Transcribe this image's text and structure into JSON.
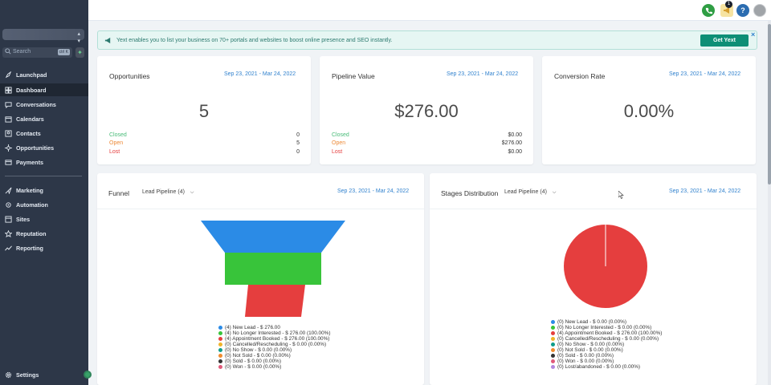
{
  "sidebar": {
    "search_placeholder": "Search",
    "search_shortcut": "ctrl K",
    "items": [
      {
        "label": "Launchpad",
        "icon": "rocket-icon"
      },
      {
        "label": "Dashboard",
        "icon": "dashboard-icon",
        "active": true
      },
      {
        "label": "Conversations",
        "icon": "chat-icon"
      },
      {
        "label": "Calendars",
        "icon": "calendar-icon"
      },
      {
        "label": "Contacts",
        "icon": "contacts-icon"
      },
      {
        "label": "Opportunities",
        "icon": "opportunities-icon"
      },
      {
        "label": "Payments",
        "icon": "payments-icon"
      },
      {
        "label": "Marketing",
        "icon": "marketing-icon"
      },
      {
        "label": "Automation",
        "icon": "automation-icon"
      },
      {
        "label": "Sites",
        "icon": "sites-icon"
      },
      {
        "label": "Reputation",
        "icon": "star-icon"
      },
      {
        "label": "Reporting",
        "icon": "reporting-icon"
      }
    ],
    "settings_label": "Settings"
  },
  "topbar": {
    "notification_count": "1",
    "help_label": "?"
  },
  "banner": {
    "text": "Yext enables you to list your business on 70+ portals and websites to boost online presence and SEO instantly.",
    "button_label": "Get Yext",
    "close_label": "×"
  },
  "cards": {
    "opportunities": {
      "title": "Opportunities",
      "date_range": "Sep 23, 2021 - Mar 24, 2022",
      "value": "5",
      "stats": [
        {
          "label": "Closed",
          "value": "0"
        },
        {
          "label": "Open",
          "value": "5"
        },
        {
          "label": "Lost",
          "value": "0"
        }
      ]
    },
    "pipeline_value": {
      "title": "Pipeline Value",
      "date_range": "Sep 23, 2021 - Mar 24, 2022",
      "value": "$276.00",
      "stats": [
        {
          "label": "Closed",
          "value": "$0.00"
        },
        {
          "label": "Open",
          "value": "$276.00"
        },
        {
          "label": "Lost",
          "value": "$0.00"
        }
      ]
    },
    "conversion_rate": {
      "title": "Conversion Rate",
      "date_range": "Sep 23, 2021 - Mar 24, 2022",
      "value": "0.00%"
    }
  },
  "funnel": {
    "title": "Funnel",
    "pipeline": "Lead Pipeline (4)",
    "date_range": "Sep 23, 2021 - Mar 24, 2022",
    "legend": [
      {
        "label": "(4) New Lead - $ 276.00",
        "color": "#2b8be6"
      },
      {
        "label": "(4) No Longer Interested - $ 276.00 (100.00%)",
        "color": "#38c43a"
      },
      {
        "label": "(4) Appointment Booked - $ 276.00 (100.00%)",
        "color": "#e53e3e"
      },
      {
        "label": "(0) Cancelled/Rescheduling - $ 0.00 (0.00%)",
        "color": "#f0b429"
      },
      {
        "label": "(0) No Show - $ 0.00 (0.00%)",
        "color": "#0f9d8a"
      },
      {
        "label": "(0) Not Sold - $ 0.00 (0.00%)",
        "color": "#f08c2e"
      },
      {
        "label": "(0) Sold - $ 0.00 (0.00%)",
        "color": "#333333"
      },
      {
        "label": "(0) Won - $ 0.00 (0.00%)",
        "color": "#e05a7a"
      }
    ]
  },
  "stages": {
    "title": "Stages Distribution",
    "pipeline": "Lead Pipeline (4)",
    "date_range": "Sep 23, 2021 - Mar 24, 2022",
    "legend": [
      {
        "label": "(0) New Lead - $ 0.00 (0.00%)",
        "color": "#2b8be6"
      },
      {
        "label": "(0) No Longer Interested - $ 0.00 (0.00%)",
        "color": "#38c43a"
      },
      {
        "label": "(4) Appointment Booked - $ 276.00 (100.00%)",
        "color": "#e53e3e"
      },
      {
        "label": "(0) Cancelled/Rescheduling - $ 0.00 (0.00%)",
        "color": "#f0b429"
      },
      {
        "label": "(0) No Show - $ 0.00 (0.00%)",
        "color": "#0f9d8a"
      },
      {
        "label": "(0) Not Sold - $ 0.00 (0.00%)",
        "color": "#f08c2e"
      },
      {
        "label": "(0) Sold - $ 0.00 (0.00%)",
        "color": "#333333"
      },
      {
        "label": "(0) Won - $ 0.00 (0.00%)",
        "color": "#e05a7a"
      },
      {
        "label": "(0) Lost/abandoned - $ 0.00 (0.00%)",
        "color": "#b388dd"
      }
    ]
  },
  "colors": {
    "sidebar": "#2d3748",
    "accent": "#0e8f76",
    "link": "#3182ce"
  }
}
